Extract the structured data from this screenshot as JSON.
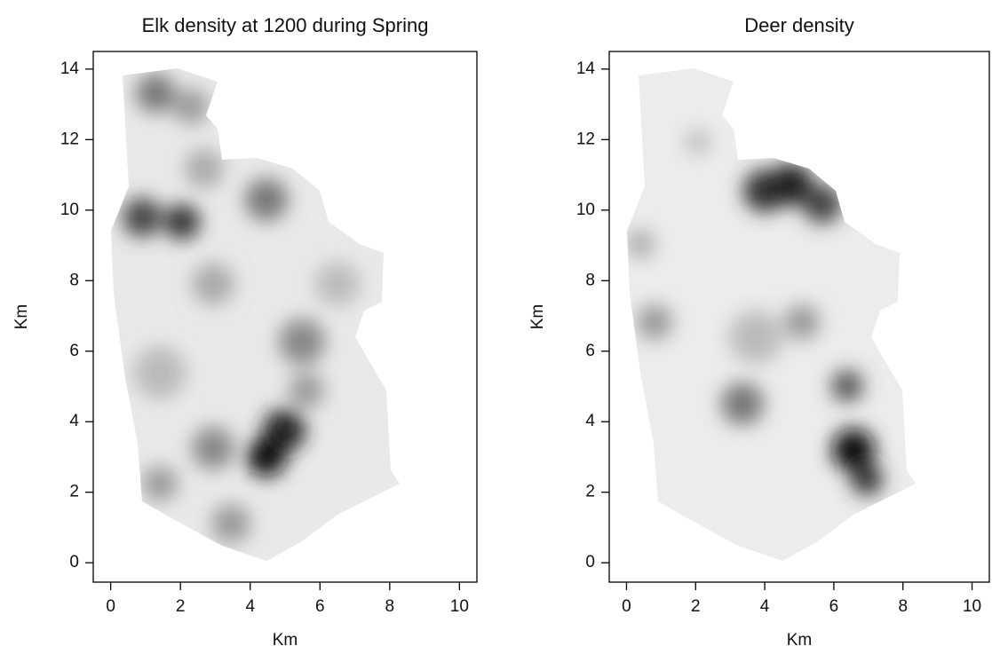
{
  "chart_data": [
    {
      "type": "contour",
      "title": "Elk density at 1200 during Spring",
      "xlabel": "Km",
      "ylabel": "Km",
      "xlim": [
        -0.5,
        10.5
      ],
      "ylim": [
        -0.55,
        14.5
      ],
      "xticks": [
        0,
        2,
        4,
        6,
        8,
        10
      ],
      "yticks": [
        0,
        2,
        4,
        6,
        8,
        10,
        12,
        14
      ]
    },
    {
      "type": "contour",
      "title": "Deer density",
      "xlabel": "Km",
      "ylabel": "Km",
      "xlim": [
        -0.5,
        10.5
      ],
      "ylim": [
        -0.55,
        14.5
      ],
      "xticks": [
        0,
        2,
        4,
        6,
        8,
        10
      ],
      "yticks": [
        0,
        2,
        4,
        6,
        8,
        10,
        12,
        14
      ]
    }
  ]
}
